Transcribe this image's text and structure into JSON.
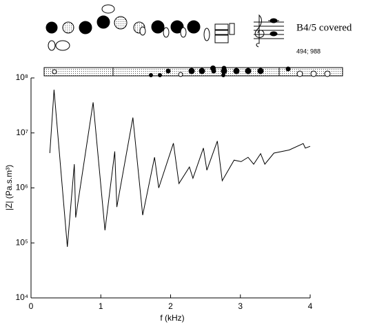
{
  "chart_data": {
    "type": "line",
    "title": "B4/5 covered",
    "subtitle": "494; 988",
    "xlabel": "f (kHz)",
    "ylabel": "|Z| (Pa.s.m³)",
    "x": [
      0.27,
      0.33,
      0.52,
      0.62,
      0.64,
      0.89,
      1.06,
      1.2,
      1.23,
      1.46,
      1.6,
      1.77,
      1.83,
      2.04,
      2.12,
      2.27,
      2.32,
      2.47,
      2.52,
      2.67,
      2.74,
      2.91,
      3.01,
      3.11,
      3.19,
      3.29,
      3.35,
      3.48,
      3.7,
      3.9,
      3.93,
      4.0
    ],
    "series": [
      {
        "color": "#000000",
        "values": [
          4300000,
          61000000,
          85000,
          2700000,
          290000,
          36000000,
          170000,
          4600000,
          450000,
          19000000,
          320000,
          3600000,
          1000000,
          6500000,
          1200000,
          2400000,
          1500000,
          5300000,
          2100000,
          7100000,
          1350000,
          3200000,
          3000000,
          3600000,
          2700000,
          4200000,
          2700000,
          4300000,
          4900000,
          6400000,
          5300000,
          5700000
        ]
      }
    ],
    "xlim": [
      0,
      4
    ],
    "xticks": [
      0,
      1,
      2,
      3,
      4
    ],
    "ylim": [
      10000,
      100000000
    ],
    "log_y": true,
    "yticks": [
      {
        "value": 10000,
        "label": "10⁴"
      },
      {
        "value": 100000,
        "label": "10⁵"
      },
      {
        "value": 1000000,
        "label": "10⁶"
      },
      {
        "value": 10000000,
        "label": "10⁷"
      },
      {
        "value": 100000000,
        "label": "10⁸"
      }
    ]
  }
}
